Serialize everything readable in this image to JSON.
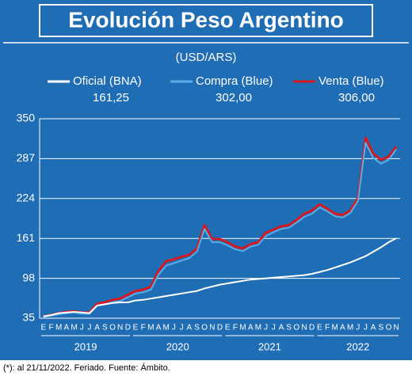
{
  "chart_data": {
    "type": "line",
    "title": "Evolución Peso Argentino",
    "subtitle": "(USD/ARS)",
    "footnote": "(*): al 21/11/2022. Feriado. Fuente: Ámbito.",
    "categories": [
      "E",
      "F",
      "M",
      "A",
      "M",
      "J",
      "J",
      "A",
      "S",
      "O",
      "N",
      "D",
      "E",
      "F",
      "M",
      "A",
      "M",
      "J",
      "J",
      "A",
      "S",
      "O",
      "N",
      "D",
      "E",
      "F",
      "M",
      "A",
      "M",
      "J",
      "J",
      "A",
      "S",
      "O",
      "N",
      "D",
      "E",
      "F",
      "M",
      "A",
      "M",
      "J",
      "J",
      "A",
      "S",
      "O",
      "N"
    ],
    "year_labels": [
      "2019",
      "2020",
      "2021",
      "2022"
    ],
    "series": [
      {
        "name": "Venta (Blue)",
        "color": "#d7191f",
        "latest": {
          "value": 306,
          "label": "306,00"
        },
        "values": [
          38,
          40,
          43,
          45,
          46,
          44,
          44,
          58,
          60,
          64,
          66,
          72,
          78,
          80,
          85,
          110,
          125,
          128,
          132,
          135,
          145,
          182,
          160,
          160,
          155,
          148,
          145,
          152,
          155,
          170,
          175,
          180,
          182,
          190,
          200,
          205,
          215,
          208,
          200,
          198,
          205,
          225,
          320,
          295,
          285,
          290,
          306
        ]
      },
      {
        "name": "Compra (Blue)",
        "color": "#5aaee8",
        "latest": {
          "value": 302,
          "label": "302,00"
        },
        "values": [
          37,
          39,
          41,
          43,
          44,
          42,
          42,
          55,
          57,
          60,
          62,
          68,
          74,
          76,
          80,
          104,
          118,
          122,
          126,
          130,
          140,
          176,
          155,
          155,
          150,
          144,
          141,
          148,
          151,
          165,
          171,
          176,
          178,
          186,
          195,
          200,
          210,
          204,
          196,
          194,
          201,
          220,
          312,
          288,
          279,
          285,
          302
        ]
      },
      {
        "name": "Oficial (BNA)",
        "color": "#ffffff",
        "latest": {
          "value": 161.25,
          "label": "161,25"
        },
        "values": [
          38,
          40,
          43,
          44,
          45,
          44,
          43,
          55,
          57,
          59,
          60,
          60,
          63,
          64,
          66,
          68,
          70,
          72,
          74,
          76,
          78,
          82,
          85,
          88,
          90,
          92,
          94,
          96,
          97,
          98,
          99,
          100,
          101,
          102,
          103,
          105,
          108,
          111,
          115,
          119,
          123,
          128,
          133,
          140,
          147,
          155,
          161.25
        ]
      }
    ],
    "ylim": [
      35,
      350
    ],
    "yticks": [
      35,
      98,
      161,
      224,
      287,
      350
    ],
    "grid": true
  }
}
